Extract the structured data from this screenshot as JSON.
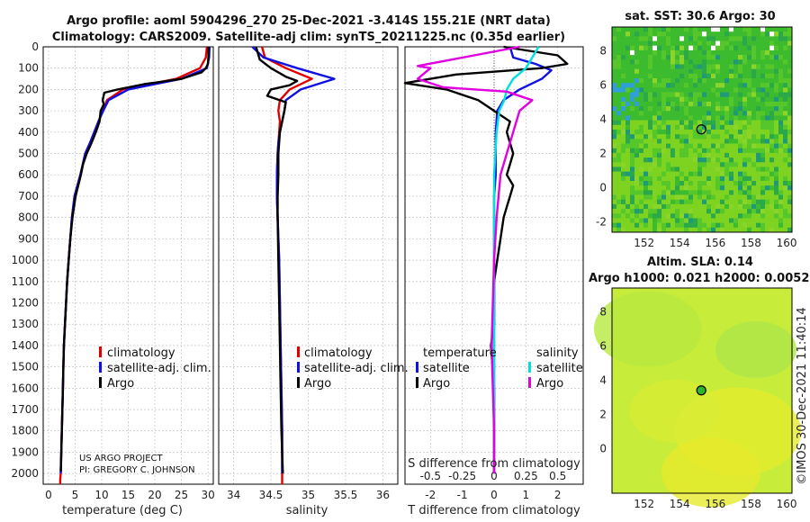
{
  "title_line1": "Argo profile: aoml 5904296_270 25-Dec-2021 -3.414S 155.21E (NRT data)",
  "title_line2": "Climatology: CARS2009. Satellite-adj clim: synTS_20211225.nc (0.35d earlier)",
  "sst_title": "sat. SST: 30.6 Argo: 30",
  "sla_title1": "Altim. SLA: 0.14",
  "sla_title2": "Argo h1000: 0.021 h2000: 0.0052",
  "copyright": "©IMOS 30-Dec-2021 11:40:14",
  "project_line1": "US ARGO PROJECT",
  "project_line2": "PI: GREGORY C. JOHNSON",
  "colors": {
    "climatology": "#e00000",
    "satellite": "#1010e0",
    "argo": "#000000",
    "sat_diff_s": "#00e0e0",
    "argo_diff_s": "#e000e0",
    "grid": "#bbbbbb"
  },
  "chart_data": [
    {
      "type": "line",
      "name": "temperature",
      "xlabel": "temperature (deg C)",
      "ylabel": "",
      "xlim": [
        -1,
        31
      ],
      "ylim": [
        2050,
        0
      ],
      "xticks": [
        0,
        5,
        10,
        15,
        20,
        25,
        30
      ],
      "depth_ticks": [
        0,
        100,
        200,
        300,
        400,
        500,
        600,
        700,
        800,
        900,
        1000,
        1100,
        1200,
        1300,
        1400,
        1500,
        1600,
        1700,
        1800,
        1900,
        2000
      ],
      "legend": [
        "climatology",
        "satellite-adj. clim.",
        "Argo"
      ],
      "series": [
        {
          "name": "climatology",
          "x": [
            29.8,
            29.6,
            28.5,
            24,
            14,
            11,
            10.2,
            9.4,
            8.6,
            7.8,
            6.9,
            6,
            4.9,
            4.4,
            4.1,
            3.8,
            3.5,
            3.3,
            3.1,
            2.9,
            2.8,
            2.7,
            2.6,
            2.5,
            2.4,
            2.3,
            2.2,
            2.2
          ],
          "y": [
            0,
            50,
            100,
            150,
            200,
            250,
            300,
            350,
            400,
            450,
            500,
            600,
            700,
            800,
            900,
            1000,
            1100,
            1200,
            1300,
            1400,
            1500,
            1600,
            1700,
            1800,
            1900,
            2000,
            2030,
            2050
          ]
        },
        {
          "name": "satellite",
          "x": [
            30.3,
            30.2,
            29.8,
            25,
            15,
            11.3,
            10.3,
            9.4,
            8.6,
            7.8,
            6.9,
            6,
            4.9,
            4.4,
            4.1,
            3.8,
            3.5,
            3.3,
            3.1,
            2.9,
            2.8,
            2.7,
            2.6,
            2.5,
            2.4,
            2.3
          ],
          "y": [
            0,
            50,
            100,
            150,
            200,
            250,
            300,
            350,
            400,
            450,
            500,
            600,
            700,
            800,
            900,
            1000,
            1100,
            1200,
            1300,
            1400,
            1500,
            1600,
            1700,
            1800,
            1900,
            2000
          ]
        },
        {
          "name": "argo",
          "x": [
            30.1,
            30.1,
            30,
            29.6,
            28.8,
            25,
            21,
            18,
            13,
            10.5,
            10.2,
            10.4,
            9.8,
            9.6,
            8.9,
            8.1,
            7.2,
            6.5,
            6.1,
            5.1,
            4.5,
            4.1,
            3.8,
            3.5,
            3.3,
            3.1,
            2.9,
            2.8,
            2.7,
            2.6,
            2.5,
            2.4,
            2.3
          ],
          "y": [
            0,
            40,
            80,
            100,
            120,
            150,
            165,
            175,
            200,
            215,
            250,
            270,
            300,
            350,
            400,
            450,
            500,
            550,
            600,
            700,
            800,
            900,
            1000,
            1100,
            1200,
            1300,
            1400,
            1500,
            1600,
            1700,
            1800,
            1900,
            1990
          ]
        }
      ]
    },
    {
      "type": "line",
      "name": "salinity",
      "xlabel": "salinity",
      "xlim": [
        33.8,
        36.2
      ],
      "ylim": [
        2050,
        0
      ],
      "xticks": [
        34,
        34.5,
        35,
        35.5,
        36
      ],
      "legend": [
        "climatology",
        "satellite-adj. clim.",
        "Argo"
      ],
      "series": [
        {
          "name": "climatology",
          "x": [
            34.38,
            34.42,
            34.7,
            35.05,
            34.75,
            34.62,
            34.6,
            34.62,
            34.61,
            34.6,
            34.59,
            34.58,
            34.58,
            34.59,
            34.6,
            34.61,
            34.62,
            34.63,
            34.64,
            34.65,
            34.65
          ],
          "y": [
            0,
            50,
            100,
            150,
            200,
            250,
            300,
            350,
            400,
            450,
            500,
            600,
            700,
            800,
            900,
            1000,
            1200,
            1400,
            1600,
            1800,
            2050
          ]
        },
        {
          "name": "satellite",
          "x": [
            34.25,
            34.4,
            34.85,
            35.35,
            34.9,
            34.7,
            34.68,
            34.65,
            34.62,
            34.6,
            34.59,
            34.58,
            34.58,
            34.59,
            34.6,
            34.61,
            34.62,
            34.63,
            34.64,
            34.65,
            34.65
          ],
          "y": [
            0,
            50,
            100,
            150,
            200,
            250,
            300,
            350,
            400,
            450,
            500,
            600,
            700,
            800,
            900,
            1000,
            1200,
            1400,
            1600,
            1800,
            2000
          ]
        },
        {
          "name": "argo",
          "x": [
            34.3,
            34.35,
            34.5,
            34.7,
            34.85,
            34.75,
            34.5,
            34.45,
            34.7,
            34.68,
            34.62,
            34.6,
            34.6,
            34.59,
            34.59,
            34.6,
            34.61,
            34.62,
            34.63,
            34.64,
            34.66
          ],
          "y": [
            0,
            60,
            100,
            140,
            160,
            180,
            200,
            230,
            260,
            300,
            400,
            500,
            600,
            700,
            800,
            1000,
            1200,
            1400,
            1600,
            1800,
            2000
          ]
        }
      ]
    },
    {
      "type": "line",
      "name": "difference",
      "xlabel": "T difference from climatology",
      "top_xlabel": "S difference from climatology",
      "xlim": [
        -2.8,
        2.8
      ],
      "ylim": [
        2050,
        0
      ],
      "xticks": [
        -2,
        -1,
        0,
        1,
        2
      ],
      "top_xticks": [
        -0.5,
        -0.25,
        0,
        0.25,
        0.5
      ],
      "top_xtick_labels": [
        "-0.5",
        "-0.25",
        "0",
        "0.25",
        "0.5"
      ],
      "legend_groups": [
        {
          "title": "temperature",
          "items": [
            "satellite",
            "Argo"
          ]
        },
        {
          "title": "salinity",
          "items": [
            "satellite",
            "Argo"
          ]
        }
      ],
      "series": [
        {
          "name": "temperature satellite",
          "x": [
            0.5,
            0.6,
            1.3,
            1.8,
            1.5,
            0.8,
            0.3,
            0.1,
            0.05,
            0.05,
            0.05,
            0.0,
            0.0,
            0.0,
            0.0,
            0.0,
            0.0,
            0.0,
            0.0,
            0.0,
            0.0
          ],
          "y": [
            0,
            50,
            80,
            110,
            150,
            200,
            250,
            300,
            400,
            500,
            600,
            700,
            800,
            900,
            1000,
            1200,
            1400,
            1600,
            1800,
            1950,
            2000
          ]
        },
        {
          "name": "temperature argo",
          "x": [
            0.3,
            2.0,
            2.3,
            1.5,
            0.6,
            -1.2,
            -3.0,
            -1.5,
            -0.5,
            0.0,
            0.5,
            0.4,
            0.6,
            0.5,
            0.4,
            0.6,
            0.5,
            0.4,
            0.3,
            0.2,
            0.1,
            0.0,
            0.0,
            0.0,
            -0.1,
            0.0,
            0.0,
            0.0
          ],
          "y": [
            0,
            40,
            80,
            100,
            110,
            130,
            170,
            200,
            250,
            300,
            350,
            400,
            500,
            550,
            600,
            650,
            700,
            750,
            800,
            900,
            1000,
            1100,
            1200,
            1300,
            1400,
            1600,
            1800,
            2000
          ]
        },
        {
          "name": "salinity satellite",
          "x": [
            0.35,
            0.3,
            0.25,
            0.15,
            0.1,
            0.08,
            0.04,
            0.02,
            0.01,
            0.0,
            0.0,
            0.0,
            0.0,
            0.0,
            0.0
          ],
          "y": [
            0,
            50,
            100,
            150,
            200,
            250,
            300,
            400,
            500,
            600,
            800,
            1000,
            1400,
            1800,
            2000
          ]
        },
        {
          "name": "salinity argo",
          "x": [
            0.2,
            -0.6,
            -0.5,
            -0.6,
            -0.4,
            0.1,
            0.3,
            0.2,
            0.15,
            0.1,
            0.05,
            0.02,
            0.0,
            -0.02,
            0.0,
            0.0
          ],
          "y": [
            0,
            90,
            100,
            150,
            190,
            210,
            250,
            300,
            400,
            500,
            600,
            800,
            1000,
            1400,
            1800,
            2000
          ]
        }
      ]
    },
    {
      "type": "heatmap",
      "name": "sst_map",
      "xticks": [
        152,
        154,
        156,
        158,
        160
      ],
      "yticks": [
        -2,
        0,
        2,
        4,
        6,
        8
      ],
      "xlim": [
        150.2,
        160.3
      ],
      "ylim": [
        -2.6,
        9.4
      ],
      "argo_position": {
        "lon": 155.21,
        "lat": 3.414
      }
    },
    {
      "type": "heatmap",
      "name": "sla_map",
      "xticks": [
        152,
        154,
        156,
        158,
        160
      ],
      "yticks": [
        0,
        2,
        4,
        6,
        8
      ],
      "xlim": [
        150.2,
        160.3
      ],
      "ylim": [
        -2.6,
        9.4
      ],
      "argo_position": {
        "lon": 155.21,
        "lat": 3.414
      }
    }
  ]
}
